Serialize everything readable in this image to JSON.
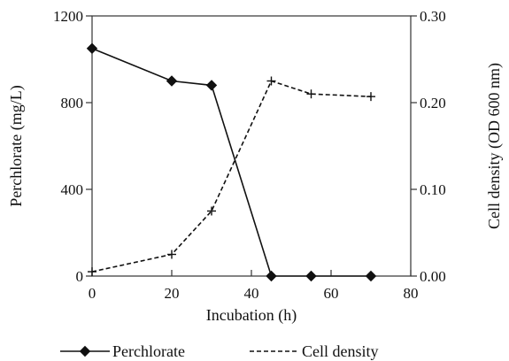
{
  "chart_data": {
    "type": "line",
    "x": [
      0,
      20,
      30,
      45,
      55,
      70
    ],
    "xlabel": "Incubation (h)",
    "ylabel_left": "Perchlorate (mg/L)",
    "ylabel_right": "Cell density (OD 600 nm)",
    "xlim": [
      0,
      80
    ],
    "ylim_left": [
      0,
      1200
    ],
    "ylim_right": [
      0,
      0.3
    ],
    "xticks": [
      "0",
      "20",
      "40",
      "60",
      "80"
    ],
    "yticks_left": [
      "0",
      "400",
      "800",
      "1200"
    ],
    "yticks_right": [
      "0.00",
      "0.10",
      "0.20",
      "0.30"
    ],
    "series": [
      {
        "name": "Perchlorate",
        "axis": "left",
        "style": "solid",
        "marker": "diamond",
        "color": "#111111",
        "values": [
          1050,
          900,
          880,
          0,
          0,
          0
        ]
      },
      {
        "name": "Cell density",
        "axis": "right",
        "style": "dashed",
        "marker": "plus",
        "color": "#111111",
        "values": [
          0.005,
          0.025,
          0.075,
          0.225,
          0.21,
          0.207
        ]
      }
    ],
    "grid": false,
    "legend_position": "bottom"
  }
}
